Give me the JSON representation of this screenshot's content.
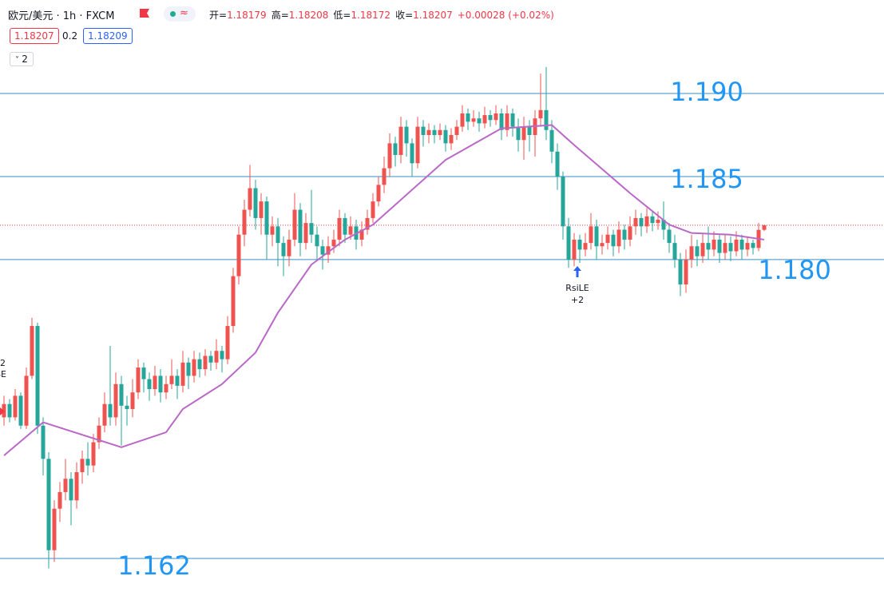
{
  "header": {
    "symbol": "欧元/美元 · 1h · FXCM",
    "ohlc": [
      {
        "label": "开=",
        "value": "1.18179"
      },
      {
        "label": "高=",
        "value": "1.18208"
      },
      {
        "label": "低=",
        "value": "1.18172"
      },
      {
        "label": "收=",
        "value": "1.18207"
      }
    ],
    "change": "+0.00028 (+0.02%)",
    "bid": "1.18207",
    "spread": "0.2",
    "ask": "1.18209",
    "indicators": "2"
  },
  "chart_data": {
    "type": "candlestick",
    "up_color": "#ef5350",
    "down_color": "#26a69a",
    "ylim": [
      1.15926,
      1.19563
    ],
    "candles": [
      [
        1.1705,
        1.1718,
        1.17,
        1.1713
      ],
      [
        1.1713,
        1.1716,
        1.1702,
        1.1705
      ],
      [
        1.1705,
        1.1722,
        1.1703,
        1.1718
      ],
      [
        1.1718,
        1.172,
        1.1698,
        1.17
      ],
      [
        1.17,
        1.1735,
        1.1698,
        1.173
      ],
      [
        1.173,
        1.1765,
        1.1728,
        1.176
      ],
      [
        1.176,
        1.1762,
        1.1695,
        1.17
      ],
      [
        1.17,
        1.1705,
        1.167,
        1.168
      ],
      [
        1.168,
        1.1684,
        1.1614,
        1.1625
      ],
      [
        1.1625,
        1.1655,
        1.1618,
        1.165
      ],
      [
        1.165,
        1.1666,
        1.1642,
        1.166
      ],
      [
        1.166,
        1.168,
        1.1655,
        1.1668
      ],
      [
        1.1668,
        1.1672,
        1.164,
        1.1655
      ],
      [
        1.1655,
        1.1678,
        1.165,
        1.1672
      ],
      [
        1.1672,
        1.1685,
        1.1665,
        1.168
      ],
      [
        1.168,
        1.169,
        1.167,
        1.1676
      ],
      [
        1.1676,
        1.1695,
        1.1672,
        1.169
      ],
      [
        1.169,
        1.1705,
        1.1686,
        1.17
      ],
      [
        1.17,
        1.172,
        1.1696,
        1.1713
      ],
      [
        1.1713,
        1.1748,
        1.17,
        1.1705
      ],
      [
        1.1705,
        1.1732,
        1.17,
        1.1725
      ],
      [
        1.1725,
        1.173,
        1.1688,
        1.1712
      ],
      [
        1.1712,
        1.1718,
        1.17,
        1.171
      ],
      [
        1.171,
        1.1728,
        1.1705,
        1.172
      ],
      [
        1.172,
        1.174,
        1.1716,
        1.1735
      ],
      [
        1.1735,
        1.1738,
        1.172,
        1.1728
      ],
      [
        1.1728,
        1.1732,
        1.1715,
        1.1722
      ],
      [
        1.1722,
        1.1736,
        1.1718,
        1.173
      ],
      [
        1.173,
        1.1734,
        1.1714,
        1.172
      ],
      [
        1.172,
        1.173,
        1.1716,
        1.1725
      ],
      [
        1.1725,
        1.174,
        1.1722,
        1.173
      ],
      [
        1.173,
        1.1734,
        1.1716,
        1.1724
      ],
      [
        1.1724,
        1.1745,
        1.172,
        1.1738
      ],
      [
        1.1738,
        1.1741,
        1.1722,
        1.173
      ],
      [
        1.173,
        1.1745,
        1.1726,
        1.174
      ],
      [
        1.174,
        1.1744,
        1.1729,
        1.1734
      ],
      [
        1.1734,
        1.1746,
        1.173,
        1.1742
      ],
      [
        1.1742,
        1.1745,
        1.1733,
        1.1738
      ],
      [
        1.1738,
        1.1752,
        1.1734,
        1.1745
      ],
      [
        1.1745,
        1.1748,
        1.1732,
        1.174
      ],
      [
        1.174,
        1.1766,
        1.1737,
        1.176
      ],
      [
        1.176,
        1.1795,
        1.1756,
        1.179
      ],
      [
        1.179,
        1.182,
        1.1785,
        1.1815
      ],
      [
        1.1815,
        1.1836,
        1.1808,
        1.183
      ],
      [
        1.183,
        1.1857,
        1.1826,
        1.1843
      ],
      [
        1.1843,
        1.1848,
        1.1818,
        1.1825
      ],
      [
        1.1825,
        1.184,
        1.1815,
        1.1835
      ],
      [
        1.1835,
        1.1838,
        1.18,
        1.1815
      ],
      [
        1.1815,
        1.1826,
        1.1808,
        1.182
      ],
      [
        1.182,
        1.1825,
        1.1796,
        1.181
      ],
      [
        1.181,
        1.1814,
        1.179,
        1.1802
      ],
      [
        1.1802,
        1.1818,
        1.1796,
        1.1812
      ],
      [
        1.1812,
        1.184,
        1.1808,
        1.183
      ],
      [
        1.183,
        1.1834,
        1.1802,
        1.181
      ],
      [
        1.181,
        1.1828,
        1.1806,
        1.1822
      ],
      [
        1.1822,
        1.1842,
        1.181,
        1.1815
      ],
      [
        1.1815,
        1.182,
        1.18,
        1.1808
      ],
      [
        1.1808,
        1.1812,
        1.1794,
        1.1803
      ],
      [
        1.1803,
        1.1814,
        1.1798,
        1.1808
      ],
      [
        1.1808,
        1.1818,
        1.1804,
        1.1812
      ],
      [
        1.1812,
        1.183,
        1.1808,
        1.1825
      ],
      [
        1.1825,
        1.1828,
        1.181,
        1.1815
      ],
      [
        1.1815,
        1.1826,
        1.1812,
        1.182
      ],
      [
        1.182,
        1.1824,
        1.1806,
        1.1812
      ],
      [
        1.1812,
        1.1823,
        1.1808,
        1.1818
      ],
      [
        1.1818,
        1.183,
        1.1815,
        1.1825
      ],
      [
        1.1825,
        1.184,
        1.1822,
        1.1835
      ],
      [
        1.1835,
        1.185,
        1.1832,
        1.1845
      ],
      [
        1.1845,
        1.1862,
        1.184,
        1.1855
      ],
      [
        1.1855,
        1.1876,
        1.185,
        1.187
      ],
      [
        1.187,
        1.1874,
        1.1856,
        1.1863
      ],
      [
        1.1863,
        1.1886,
        1.1858,
        1.188
      ],
      [
        1.188,
        1.1884,
        1.1862,
        1.187
      ],
      [
        1.187,
        1.1873,
        1.185,
        1.1858
      ],
      [
        1.1858,
        1.1886,
        1.1855,
        1.188
      ],
      [
        1.188,
        1.1884,
        1.1868,
        1.1875
      ],
      [
        1.1875,
        1.1882,
        1.187,
        1.1878
      ],
      [
        1.1878,
        1.1881,
        1.187,
        1.1875
      ],
      [
        1.1875,
        1.1882,
        1.1872,
        1.1878
      ],
      [
        1.1878,
        1.1881,
        1.1865,
        1.187
      ],
      [
        1.187,
        1.1879,
        1.1866,
        1.1875
      ],
      [
        1.1875,
        1.1884,
        1.1872,
        1.188
      ],
      [
        1.188,
        1.1893,
        1.1877,
        1.1888
      ],
      [
        1.1888,
        1.1891,
        1.1878,
        1.1883
      ],
      [
        1.1883,
        1.189,
        1.188,
        1.1885
      ],
      [
        1.1885,
        1.1889,
        1.1877,
        1.1882
      ],
      [
        1.1882,
        1.1892,
        1.1879,
        1.1887
      ],
      [
        1.1887,
        1.189,
        1.188,
        1.1884
      ],
      [
        1.1884,
        1.1893,
        1.1881,
        1.1888
      ],
      [
        1.1888,
        1.1891,
        1.1872,
        1.1878
      ],
      [
        1.1878,
        1.1893,
        1.1874,
        1.1888
      ],
      [
        1.1888,
        1.1891,
        1.1874,
        1.188
      ],
      [
        1.188,
        1.1885,
        1.1865,
        1.1872
      ],
      [
        1.1872,
        1.1886,
        1.186,
        1.188
      ],
      [
        1.188,
        1.1884,
        1.1865,
        1.1875
      ],
      [
        1.1875,
        1.189,
        1.1862,
        1.1885
      ],
      [
        1.1885,
        1.1912,
        1.188,
        1.189
      ],
      [
        1.189,
        1.1916,
        1.1872,
        1.1878
      ],
      [
        1.1878,
        1.1884,
        1.1858,
        1.1865
      ],
      [
        1.1865,
        1.187,
        1.1842,
        1.185
      ],
      [
        1.185,
        1.1853,
        1.1812,
        1.182
      ],
      [
        1.182,
        1.1825,
        1.1795,
        1.18
      ],
      [
        1.18,
        1.1816,
        1.1796,
        1.1812
      ],
      [
        1.1812,
        1.1815,
        1.1798,
        1.1806
      ],
      [
        1.1806,
        1.1816,
        1.1802,
        1.181
      ],
      [
        1.181,
        1.1828,
        1.1806,
        1.182
      ],
      [
        1.182,
        1.1824,
        1.18,
        1.1808
      ],
      [
        1.1808,
        1.1815,
        1.1803,
        1.181
      ],
      [
        1.181,
        1.182,
        1.1806,
        1.1815
      ],
      [
        1.1815,
        1.1818,
        1.1802,
        1.1808
      ],
      [
        1.1808,
        1.1823,
        1.1804,
        1.1818
      ],
      [
        1.1818,
        1.1821,
        1.1806,
        1.1812
      ],
      [
        1.1812,
        1.1826,
        1.1808,
        1.182
      ],
      [
        1.182,
        1.183,
        1.1815,
        1.1825
      ],
      [
        1.1825,
        1.1828,
        1.1814,
        1.182
      ],
      [
        1.182,
        1.1831,
        1.1816,
        1.1826
      ],
      [
        1.1826,
        1.1829,
        1.1817,
        1.1822
      ],
      [
        1.1822,
        1.1829,
        1.1818,
        1.1824
      ],
      [
        1.1824,
        1.1835,
        1.1812,
        1.1818
      ],
      [
        1.1818,
        1.1822,
        1.1804,
        1.181
      ],
      [
        1.181,
        1.1815,
        1.1795,
        1.18
      ],
      [
        1.18,
        1.1804,
        1.1778,
        1.1785
      ],
      [
        1.1785,
        1.1806,
        1.178,
        1.18
      ],
      [
        1.18,
        1.1815,
        1.1795,
        1.1808
      ],
      [
        1.1808,
        1.1812,
        1.1796,
        1.1802
      ],
      [
        1.1802,
        1.1816,
        1.1798,
        1.181
      ],
      [
        1.181,
        1.182,
        1.18,
        1.1806
      ],
      [
        1.1806,
        1.1817,
        1.1802,
        1.1812
      ],
      [
        1.1812,
        1.1815,
        1.1798,
        1.1804
      ],
      [
        1.1804,
        1.1815,
        1.18,
        1.181
      ],
      [
        1.181,
        1.1814,
        1.1799,
        1.1805
      ],
      [
        1.1805,
        1.1817,
        1.1802,
        1.1812
      ],
      [
        1.1812,
        1.1815,
        1.18,
        1.1806
      ],
      [
        1.1806,
        1.1814,
        1.1802,
        1.181
      ],
      [
        1.181,
        1.1812,
        1.1803,
        1.1807
      ],
      [
        1.1807,
        1.1822,
        1.1805,
        1.18179
      ],
      [
        1.18179,
        1.18208,
        1.18172,
        1.18207
      ]
    ],
    "ma": {
      "color": "#ba68c8",
      "x": [
        0,
        7,
        21,
        29,
        32,
        39,
        45,
        49,
        55,
        61,
        66,
        71,
        79,
        89,
        98,
        102,
        112,
        119,
        123,
        130,
        136
      ],
      "values": [
        1.1682,
        1.1702,
        1.1687,
        1.1696,
        1.171,
        1.1725,
        1.1744,
        1.1768,
        1.1797,
        1.1812,
        1.1821,
        1.1836,
        1.186,
        1.1879,
        1.1881,
        1.1869,
        1.184,
        1.1821,
        1.1816,
        1.1815,
        1.1812
      ]
    },
    "levels": [
      {
        "value": 1.19,
        "label": "1.190"
      },
      {
        "value": 1.185,
        "label": "1.185"
      },
      {
        "value": 1.18,
        "label": "1.180"
      },
      {
        "value": 1.162,
        "label": "1.162"
      }
    ],
    "level_color": "#2196f3",
    "signals": [
      {
        "candle": 102,
        "label": "RsiLE",
        "qty": "+2"
      }
    ],
    "edge_signal": {
      "qty": "2",
      "label": "SE"
    }
  }
}
